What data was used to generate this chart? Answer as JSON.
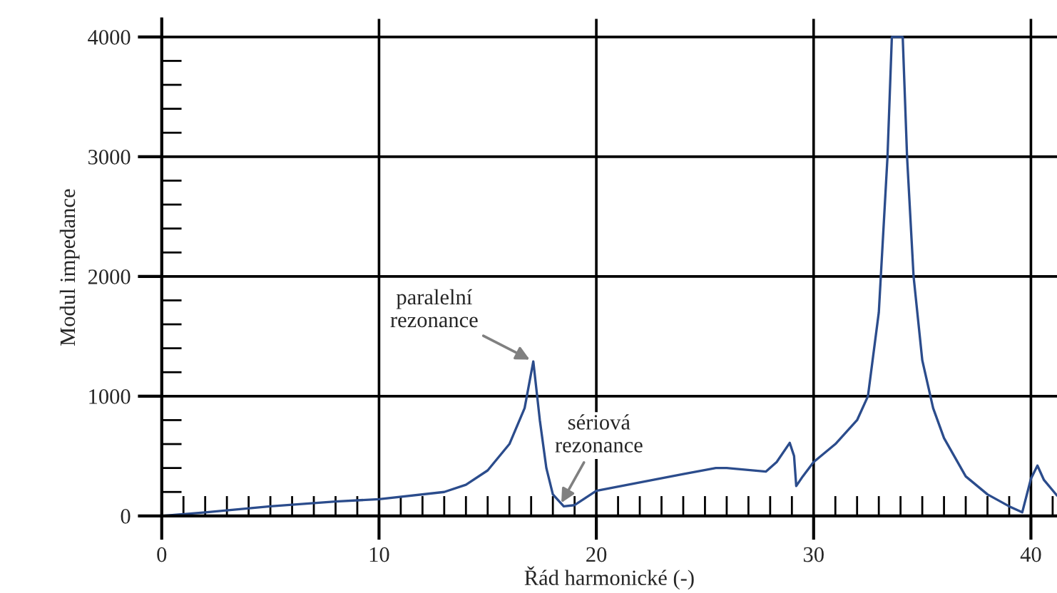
{
  "chart_data": {
    "type": "line",
    "xlabel": "Řád harmonické (-)",
    "ylabel": "Modul impedance",
    "x": [
      0,
      2,
      5,
      8,
      10,
      13,
      14,
      15,
      16,
      16.7,
      17.1,
      17.4,
      17.7,
      18.0,
      18.5,
      19.0,
      19.5,
      20,
      22,
      24,
      25.5,
      26,
      27.8,
      28.3,
      28.9,
      29.1,
      29.2,
      29.5,
      30,
      31,
      32,
      32.5,
      33,
      33.4,
      33.6,
      34.1,
      34.3,
      34.6,
      35,
      35.5,
      36,
      37,
      38,
      39,
      39.6,
      40,
      40.3,
      40.6,
      41.2
    ],
    "series": [
      {
        "color": "#2b4c8c",
        "values": [
          0,
          30,
          80,
          120,
          140,
          200,
          260,
          380,
          600,
          900,
          1290,
          800,
          400,
          180,
          80,
          90,
          150,
          210,
          280,
          350,
          400,
          400,
          370,
          450,
          610,
          500,
          250,
          330,
          450,
          600,
          800,
          1000,
          1700,
          3000,
          4000,
          4000,
          3000,
          2000,
          1300,
          900,
          650,
          330,
          180,
          80,
          30,
          310,
          420,
          300,
          170
        ]
      }
    ],
    "xlim": [
      0,
      41.2
    ],
    "ylim": [
      0,
      4150
    ],
    "xticks": [
      0,
      10,
      20,
      30,
      40
    ],
    "yticks": [
      0,
      1000,
      2000,
      3000,
      4000
    ],
    "grid": true,
    "marker": "none",
    "line_style": "solid",
    "annotations": [
      {
        "text": "paralelní\nrezonance",
        "x": 17.1,
        "y": 1290
      },
      {
        "text": "sériová\nrezonance",
        "x": 18.3,
        "y": 80
      }
    ]
  }
}
